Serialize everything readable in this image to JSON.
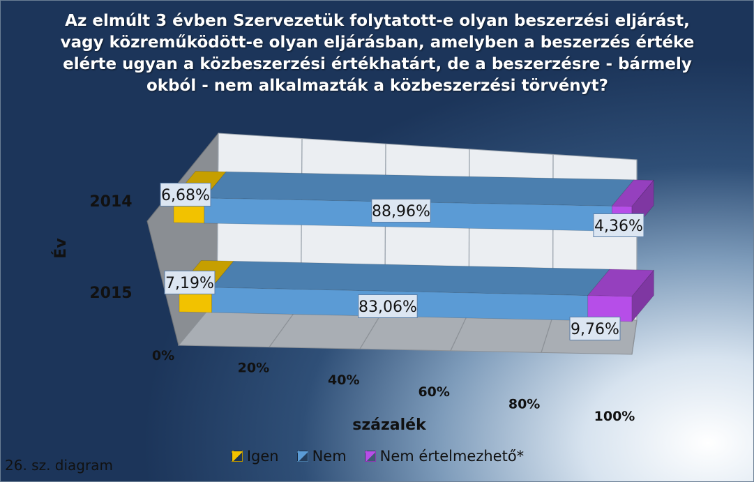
{
  "chart_data": {
    "type": "bar",
    "orientation": "horizontal",
    "stacked": "percent",
    "three_d": true,
    "title": "Az elmúlt 3 évben Szervezetük folytatott-e olyan beszerzési eljárást,\nvagy közreműködött-e olyan eljárásban, amelyben a beszerzés értéke\nelérte ugyan a közbeszerzési értékhatárt, de a beszerzésre - bármely\nokból - nem alkalmazták a közbeszerzési törvényt?",
    "xlabel": "százalék",
    "ylabel": "Év",
    "categories": [
      "2014",
      "2015"
    ],
    "series": [
      {
        "name": "Igen",
        "color": "#f2c200",
        "values": [
          6.68,
          7.19
        ],
        "labels": [
          "6,68%",
          "7,19%"
        ]
      },
      {
        "name": "Nem",
        "color": "#5b9bd5",
        "values": [
          88.96,
          83.06
        ],
        "labels": [
          "88,96%",
          "83,06%"
        ]
      },
      {
        "name": "Nem értelmezhető*",
        "color": "#b64ee8",
        "values": [
          4.36,
          9.76
        ],
        "labels": [
          "4,36%",
          "9,76%"
        ]
      }
    ],
    "xticks": [
      "0%",
      "20%",
      "40%",
      "60%",
      "80%",
      "100%"
    ],
    "xlim": [
      0,
      100
    ],
    "grid": true,
    "legend_position": "bottom"
  },
  "footnote": "26. sz. diagram"
}
